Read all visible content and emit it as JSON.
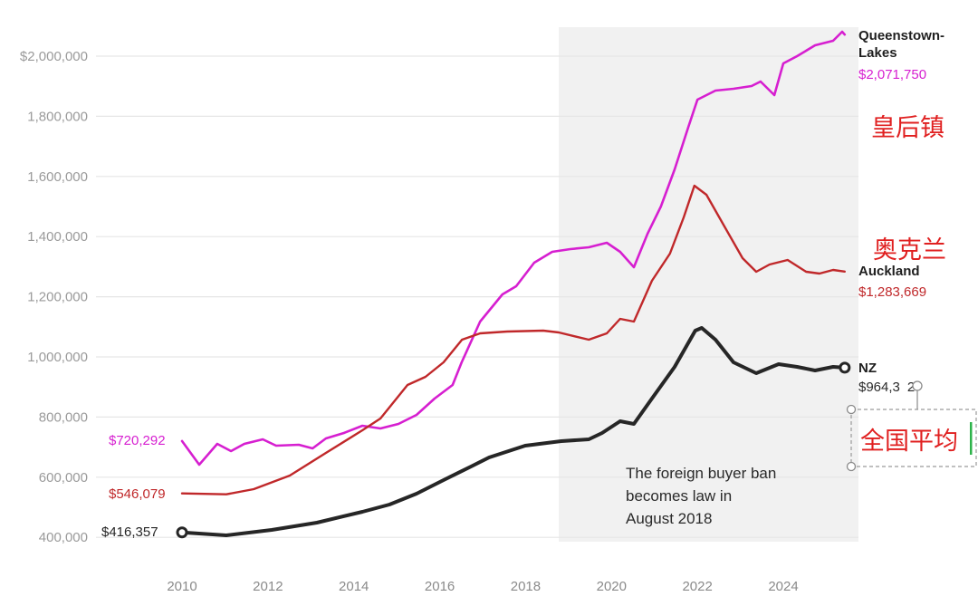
{
  "chart_data": {
    "type": "line",
    "title": "",
    "xlabel": "",
    "ylabel": "",
    "xlim": [
      2010,
      2025.8
    ],
    "ylim": [
      400000,
      2000000
    ],
    "grid": true,
    "x_ticks": [
      "2010",
      "2012",
      "2014",
      "2016",
      "2018",
      "2020",
      "2022",
      "2024"
    ],
    "x_tick_values": [
      2010,
      2012,
      2014,
      2016,
      2018,
      2020,
      2022,
      2024
    ],
    "y_ticks": [
      "$2,000,000",
      "1,800,000",
      "1,600,000",
      "1,400,000",
      "1,200,000",
      "1,000,000",
      "800,000",
      "600,000",
      "400,000"
    ],
    "y_tick_values": [
      2000000,
      1800000,
      1600000,
      1400000,
      1200000,
      1000000,
      800000,
      600000,
      400000
    ],
    "shaded_region": {
      "x_start": 2018.6,
      "x_end": 2025.8,
      "color": "#f1f1f1",
      "annotation": [
        "The foreign buyer ban",
        "becomes law in",
        "August 2018"
      ]
    },
    "series": [
      {
        "name": "Queenstown-Lakes",
        "name_lines": [
          "Queenstown-",
          "Lakes"
        ],
        "color": "#d61fd0",
        "start_label": "$720,292",
        "end_label": "$2,071,750",
        "chinese_label": "皇后镇",
        "x": [
          2010.0,
          2010.4,
          2010.82,
          2011.14,
          2011.45,
          2011.88,
          2012.19,
          2012.72,
          2013.04,
          2013.35,
          2013.77,
          2014.2,
          2014.62,
          2015.04,
          2015.46,
          2015.88,
          2016.3,
          2016.51,
          2016.94,
          2017.46,
          2017.78,
          2018.2,
          2018.62,
          2019.04,
          2019.47,
          2019.89,
          2020.2,
          2020.52,
          2020.84,
          2021.15,
          2021.47,
          2021.79,
          2022.0,
          2022.42,
          2022.84,
          2023.26,
          2023.47,
          2023.79,
          2024.0,
          2024.32,
          2024.74,
          2025.16,
          2025.37,
          2025.43
        ],
        "values": [
          720292,
          641600,
          710800,
          686700,
          710800,
          725900,
          704800,
          707800,
          695800,
          728900,
          747000,
          771100,
          762000,
          777100,
          807200,
          861400,
          906600,
          981900,
          1117500,
          1207800,
          1234900,
          1313300,
          1349400,
          1358400,
          1364500,
          1379500,
          1349400,
          1298200,
          1409600,
          1500000,
          1623500,
          1765000,
          1855400,
          1885500,
          1891600,
          1900600,
          1915700,
          1870500,
          1975900,
          2000000,
          2036100,
          2051200,
          2081300,
          2071750
        ]
      },
      {
        "name": "Auckland",
        "name_lines": [
          "Auckland"
        ],
        "color": "#c0282a",
        "start_label": "$546,079",
        "end_label": "$1,283,669",
        "chinese_label": "奥克兰",
        "x": [
          2010.0,
          2011.03,
          2011.67,
          2012.51,
          2013.35,
          2014.2,
          2014.62,
          2015.25,
          2015.67,
          2016.09,
          2016.52,
          2016.94,
          2017.57,
          2018.41,
          2018.77,
          2019.47,
          2019.89,
          2020.2,
          2020.52,
          2020.94,
          2021.36,
          2021.68,
          2021.93,
          2022.21,
          2022.63,
          2023.05,
          2023.37,
          2023.68,
          2024.1,
          2024.53,
          2024.84,
          2025.16,
          2025.43
        ],
        "values": [
          546079,
          543000,
          560200,
          605400,
          680700,
          756000,
          795200,
          906600,
          933700,
          981900,
          1057200,
          1078300,
          1084300,
          1087300,
          1081300,
          1057200,
          1078300,
          1126500,
          1117500,
          1253000,
          1343400,
          1463900,
          1569300,
          1539200,
          1433800,
          1328300,
          1283100,
          1307200,
          1322300,
          1283100,
          1277100,
          1289200,
          1283669
        ]
      },
      {
        "name": "NZ",
        "name_lines": [
          "NZ"
        ],
        "color": "#262626",
        "start_label": "$416,357",
        "end_label": "$964,3",
        "end_label_tail": "2",
        "chinese_label": "全国平均",
        "x": [
          2010.0,
          2011.03,
          2012.09,
          2013.14,
          2014.2,
          2014.83,
          2015.46,
          2016.09,
          2016.73,
          2017.15,
          2017.99,
          2018.83,
          2019.47,
          2019.78,
          2020.2,
          2020.52,
          2020.94,
          2021.47,
          2021.95,
          2022.1,
          2022.42,
          2022.84,
          2023.37,
          2023.89,
          2024.32,
          2024.74,
          2025.16,
          2025.43
        ],
        "values": [
          416357,
          406600,
          424700,
          448800,
          484900,
          509000,
          545200,
          590400,
          635600,
          665700,
          704800,
          719900,
          725900,
          747000,
          786100,
          777100,
          861400,
          966900,
          1087400,
          1096400,
          1057200,
          981900,
          945800,
          975900,
          966900,
          954800,
          966900,
          964300
        ]
      }
    ]
  },
  "colors": {
    "background": "#ffffff",
    "shade": "#f1f1f1",
    "grid": "#e6e6e6",
    "chinese_label": "#e02020",
    "cursor": "#2db34a"
  }
}
